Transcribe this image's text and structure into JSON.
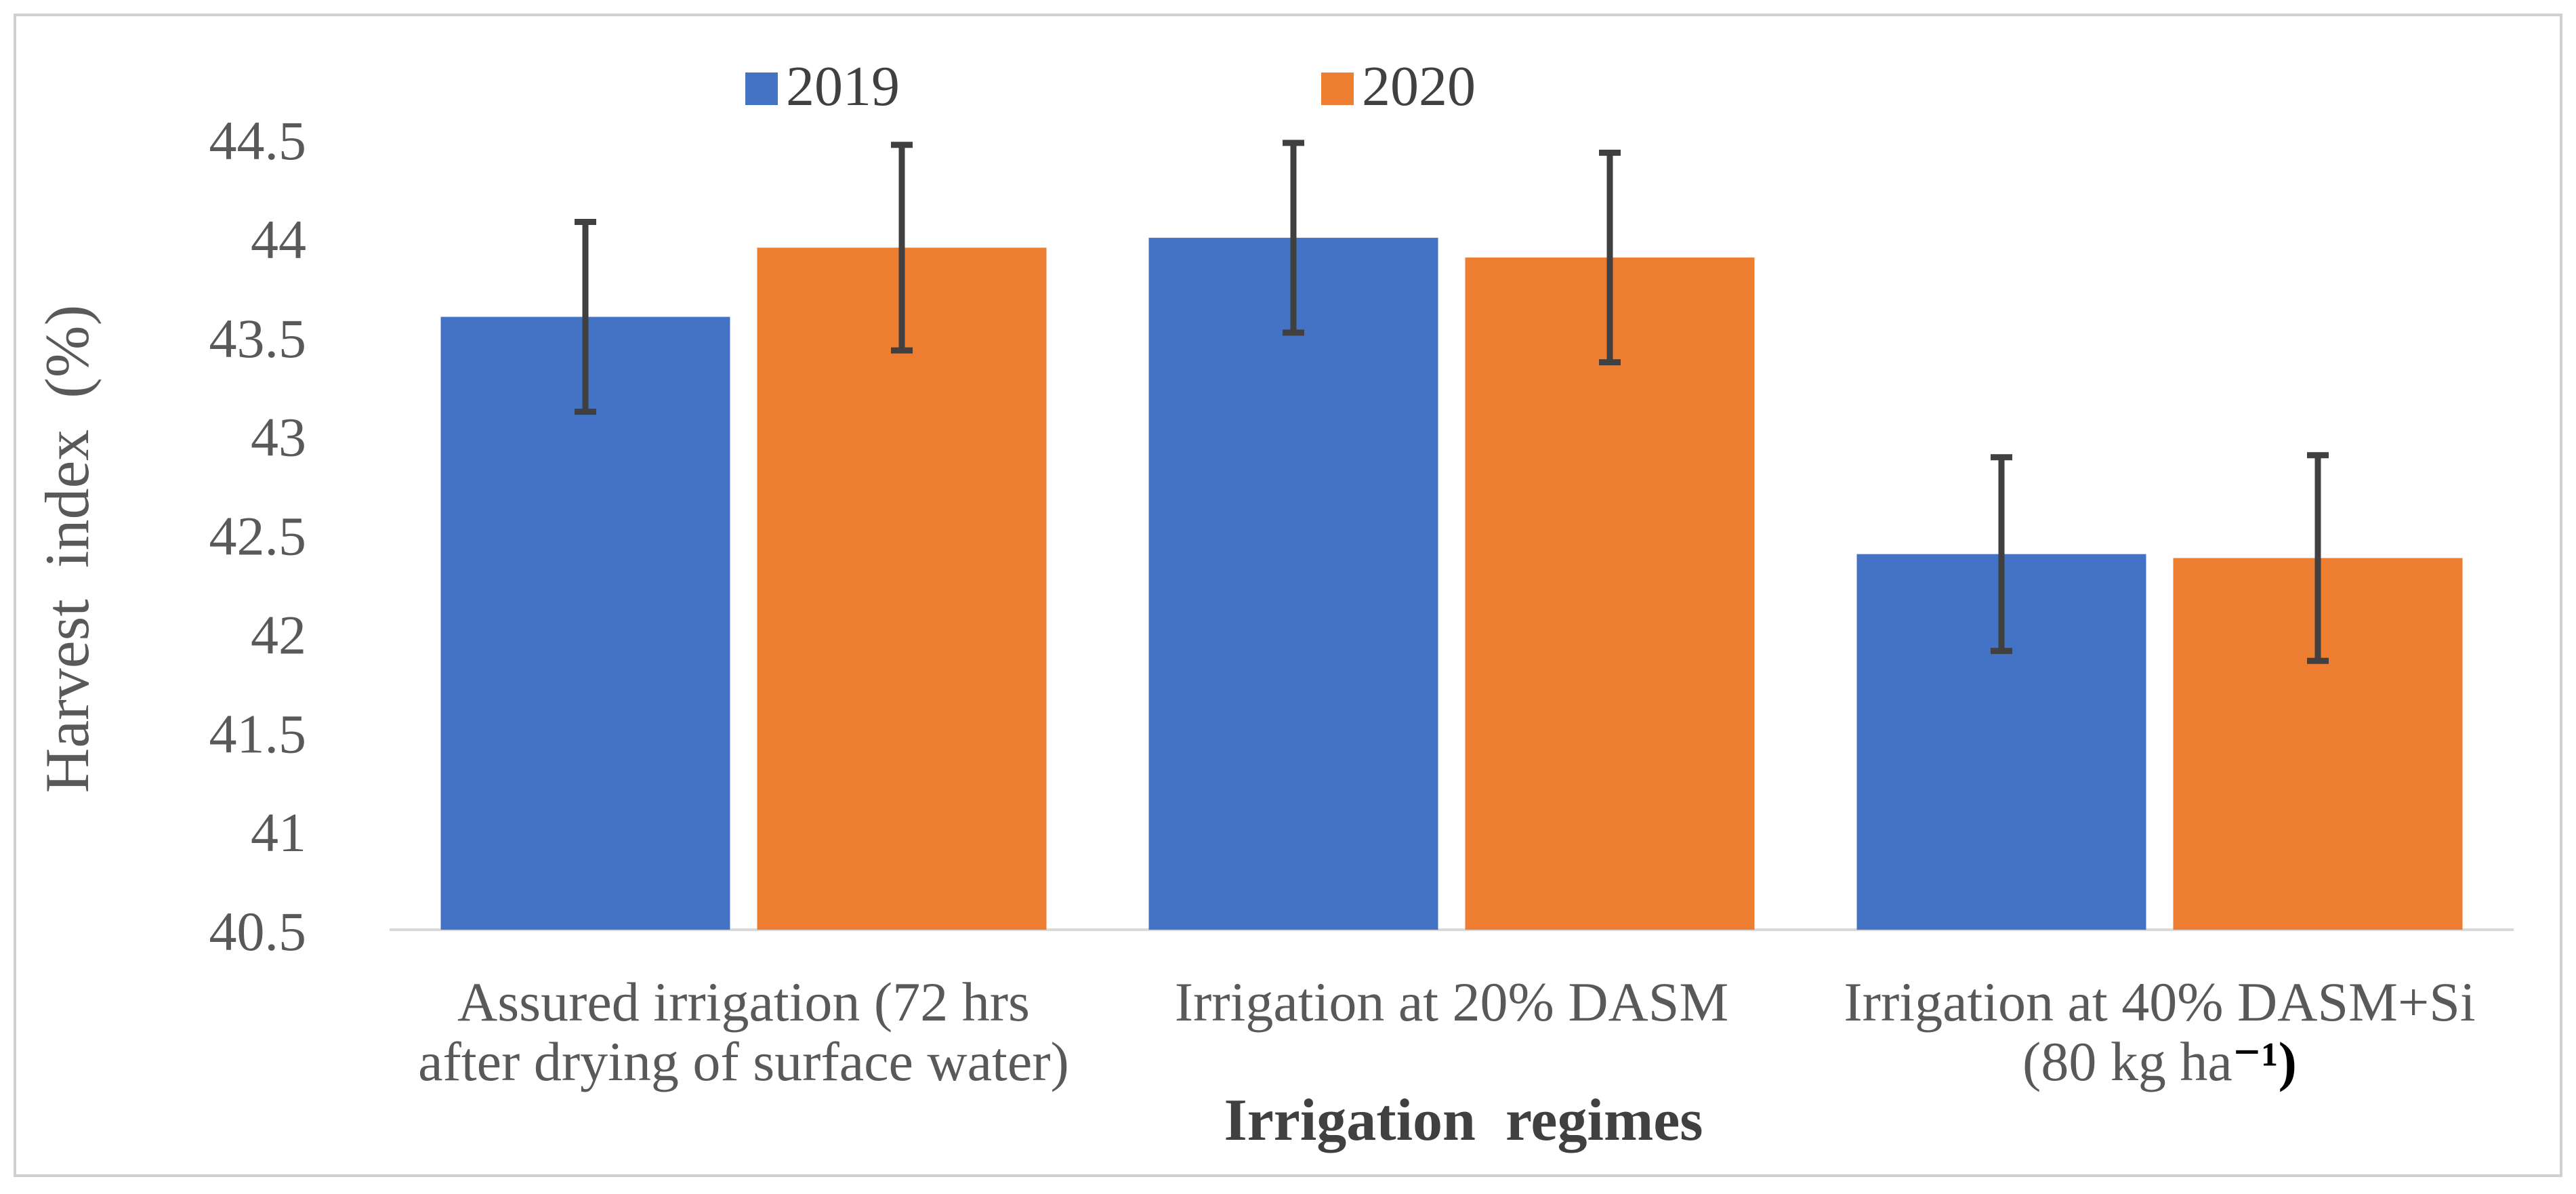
{
  "chart_data": {
    "type": "bar",
    "title": "",
    "xlabel": "Irrigation  regimes",
    "ylabel": "Harvest  index  (%)",
    "ylim": [
      40.5,
      44.5
    ],
    "yticks": [
      "40.5",
      "41",
      "41.5",
      "42",
      "42.5",
      "43",
      "43.5",
      "44",
      "44.5"
    ],
    "ytick_values": [
      40.5,
      41,
      41.5,
      42,
      42.5,
      43,
      43.5,
      44,
      44.5
    ],
    "grid": false,
    "legend_position": "top-center",
    "categories": [
      {
        "label_lines": [
          "Assured irrigation (72 hrs",
          "after drying of surface water)"
        ],
        "sup": ""
      },
      {
        "label_lines": [
          "Irrigation at 20% DASM"
        ],
        "sup": ""
      },
      {
        "label_lines": [
          "Irrigation at 40% DASM+Si",
          "(80 kg ha"
        ],
        "sup": "⁻¹)"
      }
    ],
    "series": [
      {
        "name": "2019",
        "color": "#4472C4",
        "values": [
          43.6,
          44.0,
          42.4
        ],
        "errors": [
          0.48,
          0.48,
          0.49
        ]
      },
      {
        "name": "2020",
        "color": "#ED7D31",
        "values": [
          43.95,
          43.9,
          42.38
        ],
        "errors": [
          0.52,
          0.53,
          0.52
        ]
      }
    ]
  }
}
